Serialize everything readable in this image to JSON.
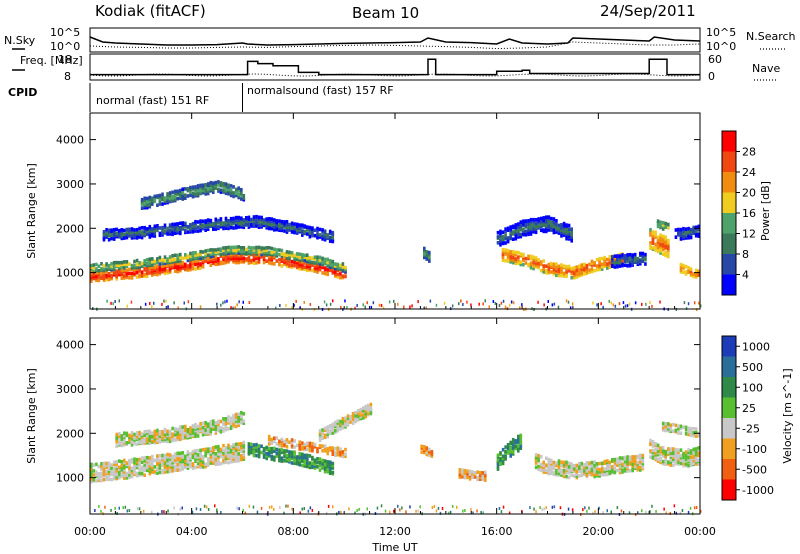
{
  "header": {
    "station": "Kodiak (fitACF)",
    "beam": "Beam 10",
    "date": "24/Sep/2011"
  },
  "chart_data": [
    {
      "type": "line",
      "name": "noise-panel",
      "left_label": "N.Sky",
      "right_label": "N.Search",
      "left_ticks": [
        "10^5",
        "10^0"
      ],
      "right_ticks": [
        "10^5",
        "10^0"
      ],
      "nsky": {
        "x": [
          0,
          0.5,
          1,
          2,
          3,
          4,
          5,
          6,
          6.2,
          7,
          8,
          9,
          10,
          11,
          12,
          13,
          13.3,
          14,
          15,
          16,
          16.5,
          17,
          18,
          18.8,
          19,
          20,
          21,
          22,
          22.2,
          23,
          24
        ],
        "y": [
          0.7,
          0.45,
          0.4,
          0.35,
          0.3,
          0.3,
          0.32,
          0.4,
          0.35,
          0.3,
          0.32,
          0.35,
          0.38,
          0.4,
          0.42,
          0.45,
          0.65,
          0.45,
          0.42,
          0.35,
          0.6,
          0.4,
          0.35,
          0.4,
          0.65,
          0.6,
          0.55,
          0.5,
          0.7,
          0.55,
          0.5
        ]
      },
      "nsearch": {
        "x": [
          0,
          1,
          2,
          3,
          4,
          5,
          6,
          7,
          8,
          9,
          10,
          11,
          12,
          13,
          14,
          15,
          16,
          17,
          18,
          19,
          20,
          21,
          22,
          23,
          24
        ],
        "y": [
          0.25,
          0.2,
          0.18,
          0.15,
          0.15,
          0.18,
          0.2,
          0.18,
          0.22,
          0.25,
          0.28,
          0.3,
          0.28,
          0.25,
          0.22,
          0.18,
          0.12,
          0.15,
          0.2,
          0.45,
          0.4,
          0.35,
          0.3,
          0.3,
          0.35
        ]
      }
    },
    {
      "type": "line",
      "name": "frequency-panel",
      "left_label": "Freq. [MHz]",
      "right_label": "Nave",
      "left_ticks": [
        "18",
        "8"
      ],
      "right_ticks": [
        "60",
        "0"
      ],
      "freq_mhz": {
        "x": [
          0,
          6.2,
          6.2,
          6.6,
          6.6,
          7.2,
          7.2,
          8.2,
          8.2,
          9.0,
          9.0,
          13.3,
          13.3,
          13.6,
          13.6,
          16.0,
          16.0,
          17.0,
          17.0,
          17.3,
          17.3,
          22.0,
          22.0,
          22.7,
          22.7,
          24
        ],
        "y": [
          10,
          10,
          16,
          16,
          15,
          15,
          14,
          14,
          11,
          11,
          10,
          10,
          17,
          17,
          10,
          10,
          11.5,
          11.5,
          12,
          12,
          10.5,
          10.5,
          17,
          17,
          10,
          10
        ]
      }
    },
    {
      "type": "bar",
      "name": "cpid-panel",
      "label": "CPID",
      "segments": [
        {
          "start": 0,
          "end": 6,
          "text": "normal (fast) 151 RF"
        },
        {
          "start": 6,
          "end": 24,
          "text": "normalsound (fast) 157 RF"
        }
      ]
    },
    {
      "type": "heatmap",
      "name": "power-panel",
      "ylabel": "Slant Range [km]",
      "ylim": [
        180,
        4600
      ],
      "yticks": [
        1000,
        2000,
        3000,
        4000
      ],
      "colorbar_label": "Power [dB]",
      "colorbar_ticks": [
        4,
        8,
        12,
        16,
        20,
        24,
        28
      ],
      "colors": [
        "#0000ff",
        "#2848a8",
        "#3a7a5a",
        "#4ea36a",
        "#f0cc20",
        "#f08c10",
        "#f04810",
        "#ff0000"
      ],
      "bands": [
        {
          "t": [
            0,
            2,
            4,
            5.5,
            7,
            9,
            10
          ],
          "r": [
            950,
            1050,
            1220,
            1380,
            1350,
            1150,
            1000
          ],
          "w": 220,
          "level": 7
        },
        {
          "t": [
            0,
            2,
            4,
            5.5,
            7,
            9,
            10
          ],
          "r": [
            1150,
            1250,
            1420,
            1560,
            1530,
            1320,
            1150
          ],
          "w": 180,
          "level": 4
        },
        {
          "t": [
            0.5,
            2,
            3.5,
            5,
            6.5,
            8,
            9.5
          ],
          "r": [
            1900,
            1950,
            2050,
            2150,
            2200,
            2050,
            1850
          ],
          "w": 250,
          "level": 2
        },
        {
          "t": [
            2,
            3.5,
            5,
            6
          ],
          "r": [
            2600,
            2800,
            3000,
            2800
          ],
          "w": 250,
          "level": 3
        },
        {
          "t": [
            16.2,
            17,
            18,
            19,
            20,
            21
          ],
          "r": [
            1450,
            1350,
            1150,
            1050,
            1250,
            1350
          ],
          "w": 280,
          "level": 6
        },
        {
          "t": [
            16,
            17,
            18,
            19
          ],
          "r": [
            1800,
            2050,
            2150,
            1900
          ],
          "w": 350,
          "level": 2
        },
        {
          "t": [
            20.5,
            21.2,
            21.9
          ],
          "r": [
            1300,
            1330,
            1380
          ],
          "w": 280,
          "level": 2
        },
        {
          "t": [
            22,
            22.4,
            22.8
          ],
          "r": [
            1800,
            1700,
            1600
          ],
          "w": 450,
          "level": 6
        },
        {
          "t": [
            22.3,
            22.8
          ],
          "r": [
            2150,
            2050
          ],
          "w": 180,
          "level": 4
        },
        {
          "t": [
            23.2,
            23.6,
            24
          ],
          "r": [
            1150,
            1050,
            1000
          ],
          "w": 200,
          "level": 6
        },
        {
          "t": [
            23,
            23.6,
            24
          ],
          "r": [
            1900,
            1950,
            2000
          ],
          "w": 250,
          "level": 2
        },
        {
          "t": [
            13.1,
            13.3
          ],
          "r": [
            1500,
            1400
          ],
          "w": 250,
          "level": 3
        }
      ]
    },
    {
      "type": "heatmap",
      "name": "velocity-panel",
      "ylabel": "Slant Range [km]",
      "ylim": [
        180,
        4600
      ],
      "yticks": [
        1000,
        2000,
        3000,
        4000
      ],
      "colorbar_label": "Velocity [m s^-1]",
      "colorbar_ticks": [
        "1000",
        "500",
        "100",
        "25",
        "-25",
        "-100",
        "-500",
        "-1000"
      ],
      "colors": [
        "#1c3cb8",
        "#2a6e9a",
        "#2f8a4a",
        "#58c030",
        "#c8c8c8",
        "#f0a020",
        "#f06010",
        "#ff0000"
      ],
      "bands": [
        {
          "t": [
            0,
            1.5,
            3,
            4.5,
            6
          ],
          "r": [
            1150,
            1250,
            1380,
            1500,
            1650
          ],
          "w": 420,
          "level": 4
        },
        {
          "t": [
            1,
            3,
            5,
            6
          ],
          "r": [
            1900,
            2000,
            2200,
            2400
          ],
          "w": 300,
          "level": 4
        },
        {
          "t": [
            6.2,
            7,
            8,
            9,
            9.5
          ],
          "r": [
            1700,
            1600,
            1500,
            1350,
            1250
          ],
          "w": 280,
          "level": 2
        },
        {
          "t": [
            7,
            8,
            9,
            10
          ],
          "r": [
            1900,
            1800,
            1700,
            1600
          ],
          "w": 200,
          "level": 5
        },
        {
          "t": [
            9,
            10,
            11
          ],
          "r": [
            2000,
            2300,
            2600
          ],
          "w": 250,
          "level": 4
        },
        {
          "t": [
            13,
            13.4
          ],
          "r": [
            1700,
            1600
          ],
          "w": 180,
          "level": 5
        },
        {
          "t": [
            14.5,
            15,
            15.5
          ],
          "r": [
            1150,
            1100,
            1080
          ],
          "w": 200,
          "level": 5
        },
        {
          "t": [
            16,
            16.5,
            17
          ],
          "r": [
            1400,
            1700,
            1900
          ],
          "w": 350,
          "level": 2
        },
        {
          "t": [
            17.5,
            18,
            19,
            20,
            21,
            21.8
          ],
          "r": [
            1400,
            1300,
            1200,
            1250,
            1350,
            1400
          ],
          "w": 350,
          "level": 4
        },
        {
          "t": [
            22,
            22.5,
            23,
            23.5,
            24
          ],
          "r": [
            1700,
            1550,
            1500,
            1500,
            1550
          ],
          "w": 400,
          "level": 4
        },
        {
          "t": [
            22.5,
            23.5,
            24
          ],
          "r": [
            2200,
            2100,
            2050
          ],
          "w": 200,
          "level": 4
        }
      ]
    }
  ],
  "x_axis": {
    "label": "Time UT",
    "ticks": [
      "00:00",
      "04:00",
      "08:00",
      "12:00",
      "16:00",
      "20:00",
      "00:00"
    ],
    "range": [
      0,
      24
    ]
  }
}
